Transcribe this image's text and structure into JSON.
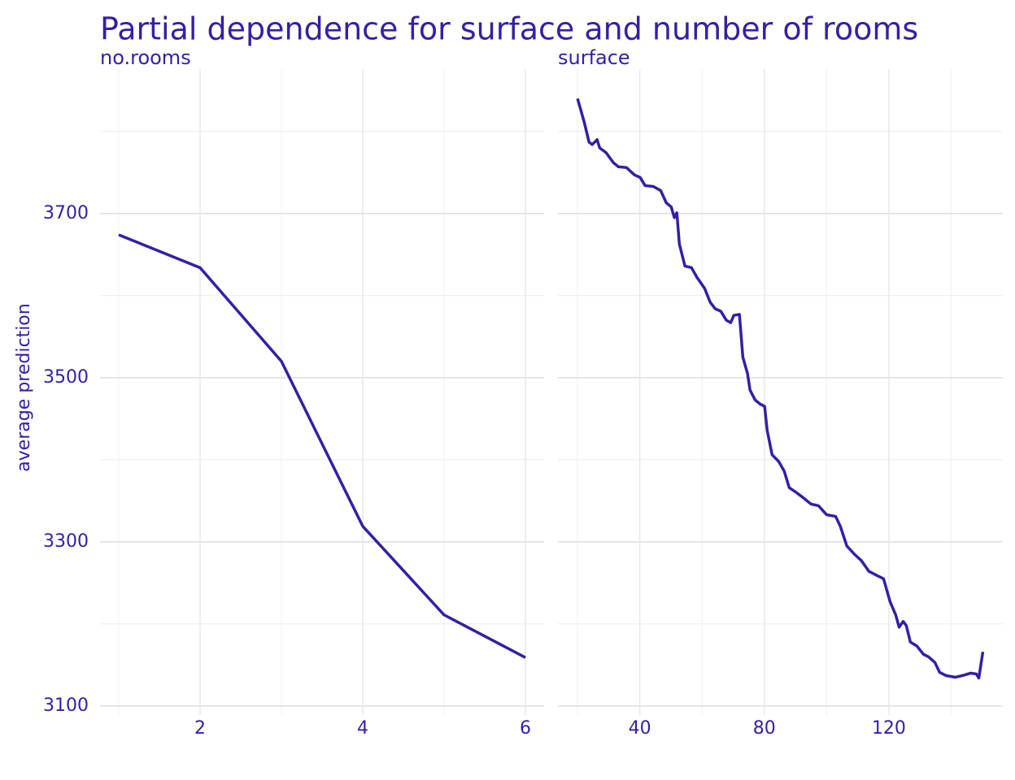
{
  "title": "Partial dependence for surface and number of rooms",
  "y_label": "average prediction",
  "chart_data": [
    {
      "type": "line",
      "title": "no.rooms",
      "color": "#371ea3",
      "grid": true,
      "x": [
        1,
        2,
        3,
        4,
        5,
        6
      ],
      "values": [
        3674,
        3634,
        3520,
        3319,
        3211,
        3159
      ],
      "xlim": [
        0.77,
        6.23
      ],
      "xticks": [
        2,
        4,
        6
      ],
      "minor_xticks": [
        1,
        3,
        5
      ],
      "ylim": [
        3089,
        3876
      ],
      "yticks": [
        3100,
        3300,
        3500,
        3700
      ],
      "minor_yticks": [
        3200,
        3400,
        3600,
        3800
      ]
    },
    {
      "type": "line",
      "title": "surface",
      "color": "#371ea3",
      "grid": true,
      "x": [
        20,
        22.1,
        23.7,
        24.7,
        26.3,
        27.1,
        29.2,
        31.5,
        33.1,
        35.7,
        38.3,
        40.1,
        41.7,
        44.3,
        46.7,
        48.5,
        50.1,
        51.1,
        51.9,
        52.7,
        54.5,
        56.6,
        58.4,
        60.8,
        62.6,
        64.2,
        66.0,
        67.8,
        69.2,
        70.2,
        72.0,
        73.1,
        74.6,
        75.4,
        77.0,
        78.6,
        80.1,
        80.9,
        82.5,
        84.6,
        86.4,
        88.0,
        90.3,
        92.4,
        95.0,
        97.4,
        100.0,
        102.9,
        104.4,
        106.5,
        108.9,
        111.2,
        113.6,
        116.2,
        118.3,
        120.4,
        122.2,
        123.3,
        124.6,
        125.6,
        126.9,
        129.0,
        131.1,
        132.7,
        134.8,
        136.3,
        138.4,
        141.3,
        143.6,
        146.3,
        148.1,
        148.9,
        150.2
      ],
      "values": [
        3840,
        3812,
        3787,
        3784,
        3790,
        3780,
        3774,
        3762,
        3757,
        3756,
        3747,
        3744,
        3734,
        3733,
        3728,
        3713,
        3708,
        3695,
        3701,
        3663,
        3636,
        3634,
        3622,
        3609,
        3592,
        3584,
        3581,
        3570,
        3567,
        3576,
        3577,
        3525,
        3505,
        3485,
        3473,
        3468,
        3465,
        3436,
        3406,
        3398,
        3386,
        3366,
        3360,
        3354,
        3346,
        3344,
        3333,
        3331,
        3319,
        3295,
        3285,
        3277,
        3264,
        3259,
        3255,
        3227,
        3211,
        3196,
        3203,
        3198,
        3178,
        3173,
        3163,
        3160,
        3153,
        3141,
        3137,
        3135,
        3137,
        3140,
        3139,
        3134,
        3166
      ],
      "xlim": [
        13.7,
        156.6
      ],
      "xticks": [
        40,
        80,
        120
      ],
      "minor_xticks": [
        20,
        60,
        100,
        140
      ],
      "ylim": [
        3089,
        3876
      ],
      "yticks": [
        3100,
        3300,
        3500,
        3700
      ],
      "minor_yticks": [
        3200,
        3400,
        3600,
        3800
      ]
    }
  ]
}
